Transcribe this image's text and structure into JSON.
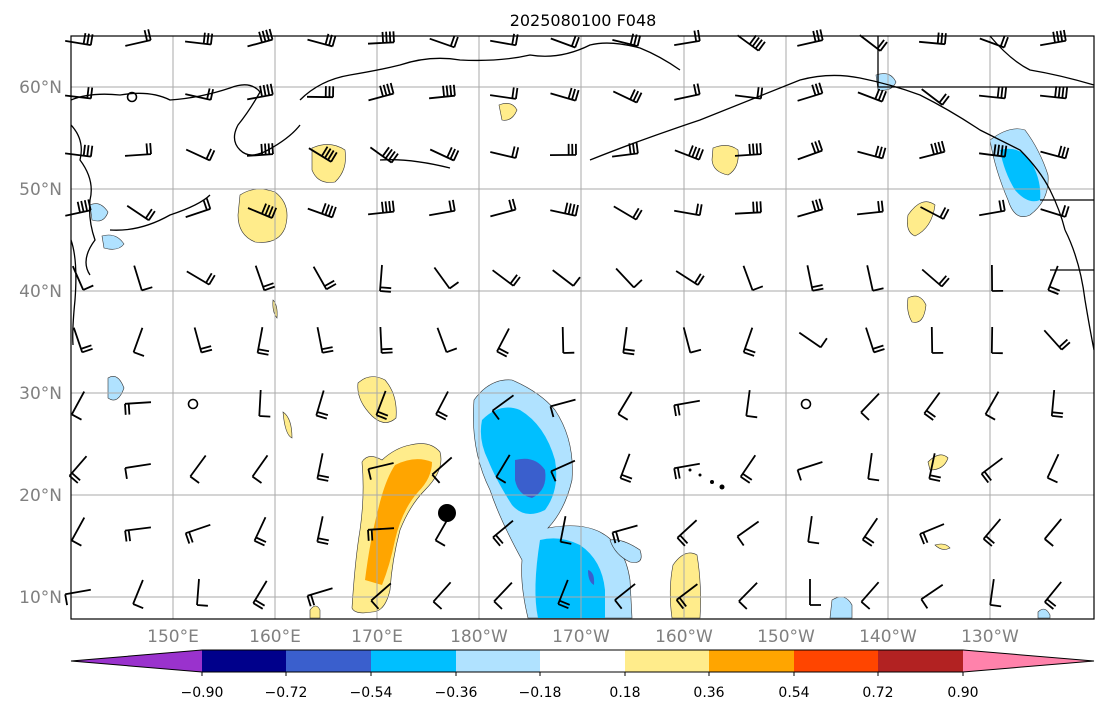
{
  "title": "2025080100 F048",
  "lat_labels": [
    "60°N",
    "50°N",
    "40°N",
    "30°N",
    "20°N",
    "10°N"
  ],
  "lon_labels": [
    "150°E",
    "160°E",
    "170°E",
    "180°W",
    "170°W",
    "160°W",
    "150°W",
    "140°W",
    "130°W"
  ],
  "colorbar": {
    "ticks": [
      "−0.90",
      "−0.72",
      "−0.54",
      "−0.36",
      "−0.18",
      "0.18",
      "0.36",
      "0.54",
      "0.72",
      "0.90"
    ],
    "colors": [
      "#9a32cd",
      "#00008b",
      "#3a5fcd",
      "#00bfff",
      "#b0e2ff",
      "#ffffff",
      "#ffec8b",
      "#ffa500",
      "#ff4500",
      "#b22222",
      "#ff82ab"
    ]
  },
  "marker": "storm-center"
}
